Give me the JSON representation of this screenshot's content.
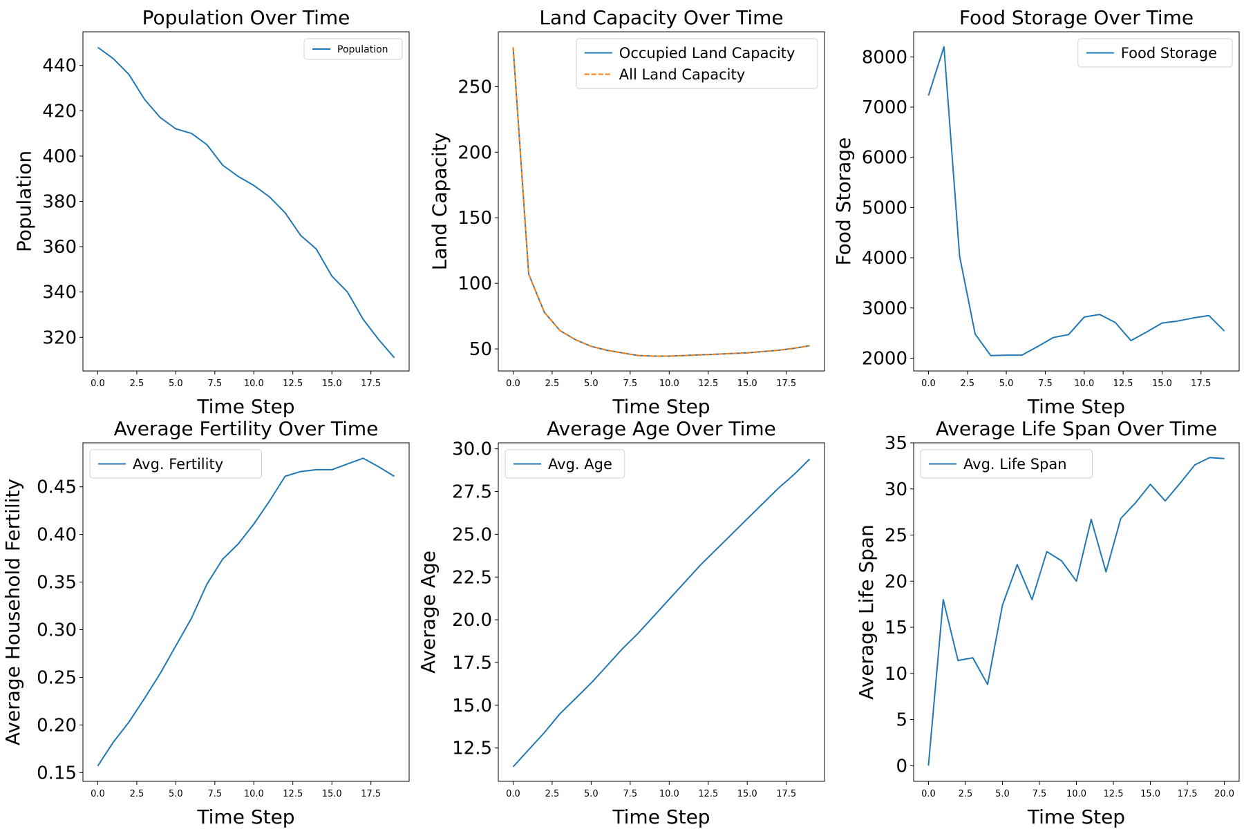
{
  "colors": {
    "blue": "#1f77b4",
    "orange": "#ff7f0e"
  },
  "chart_data": [
    {
      "type": "line",
      "title": "Population Over Time",
      "xlabel": "Time Step",
      "ylabel": "Population",
      "xlim": [
        -0.95,
        19.95
      ],
      "ylim": [
        305.15,
        454.85
      ],
      "xticks": [
        "0.0",
        "2.5",
        "5.0",
        "7.5",
        "10.0",
        "12.5",
        "15.0",
        "17.5"
      ],
      "yticks": [
        "320",
        "340",
        "360",
        "380",
        "400",
        "420",
        "440"
      ],
      "legend": {
        "loc": "upper right",
        "size": "small"
      },
      "x": [
        0,
        1,
        2,
        3,
        4,
        5,
        6,
        7,
        8,
        9,
        10,
        11,
        12,
        13,
        14,
        15,
        16,
        17,
        18,
        19
      ],
      "series": [
        {
          "name": "Population",
          "color": "#1f77b4",
          "style": "solid",
          "values": [
            448,
            443,
            436,
            425,
            417,
            412,
            410,
            405,
            396,
            391,
            387,
            382,
            375,
            365,
            359,
            347,
            340,
            328,
            319,
            311
          ]
        }
      ]
    },
    {
      "type": "line",
      "title": "Land Capacity Over Time",
      "xlabel": "Time Step",
      "ylabel": "Land Capacity",
      "xlim": [
        -0.95,
        19.95
      ],
      "ylim": [
        33.2,
        291.8
      ],
      "xticks": [
        "0.0",
        "2.5",
        "5.0",
        "7.5",
        "10.0",
        "12.5",
        "15.0",
        "17.5"
      ],
      "yticks": [
        "50",
        "100",
        "150",
        "200",
        "250"
      ],
      "legend": {
        "loc": "upper right",
        "size": "large"
      },
      "x": [
        0,
        1,
        2,
        3,
        4,
        5,
        6,
        7,
        8,
        9,
        10,
        11,
        12,
        13,
        14,
        15,
        16,
        17,
        18,
        19
      ],
      "series": [
        {
          "name": "Occupied Land Capacity",
          "color": "#1f77b4",
          "style": "solid",
          "values": [
            280,
            107,
            78,
            64,
            57,
            52,
            49,
            47,
            45,
            44.5,
            44.5,
            45,
            45.5,
            46,
            46.5,
            47,
            48,
            49,
            50.5,
            52.5
          ]
        },
        {
          "name": "All Land Capacity",
          "color": "#ff7f0e",
          "style": "dashed",
          "values": [
            280,
            107,
            78,
            64,
            57,
            52,
            49,
            47,
            45,
            44.5,
            44.5,
            45,
            45.5,
            46,
            46.5,
            47,
            48,
            49,
            50.5,
            52.5
          ]
        }
      ]
    },
    {
      "type": "line",
      "title": "Food Storage Over Time",
      "xlabel": "Time Step",
      "ylabel": "Food Storage",
      "xlim": [
        -0.95,
        19.95
      ],
      "ylim": [
        1745,
        8500
      ],
      "xticks": [
        "0.0",
        "2.5",
        "5.0",
        "7.5",
        "10.0",
        "12.5",
        "15.0",
        "17.5"
      ],
      "yticks": [
        "2000",
        "3000",
        "4000",
        "5000",
        "6000",
        "7000",
        "8000"
      ],
      "legend": {
        "loc": "upper right",
        "size": "large"
      },
      "x": [
        0,
        1,
        2,
        3,
        4,
        5,
        6,
        7,
        8,
        9,
        10,
        11,
        12,
        13,
        14,
        15,
        16,
        17,
        18,
        19
      ],
      "series": [
        {
          "name": "Food Storage",
          "color": "#1f77b4",
          "style": "solid",
          "values": [
            7230,
            8200,
            4030,
            2480,
            2050,
            2060,
            2060,
            2230,
            2410,
            2470,
            2820,
            2870,
            2710,
            2350,
            2520,
            2700,
            2740,
            2800,
            2850,
            2540
          ]
        }
      ]
    },
    {
      "type": "line",
      "title": "Average Fertility Over Time",
      "xlabel": "Time Step",
      "ylabel": "Average Household Fertility",
      "xlim": [
        -0.95,
        19.95
      ],
      "ylim": [
        0.1408,
        0.4962
      ],
      "xticks": [
        "0.0",
        "2.5",
        "5.0",
        "7.5",
        "10.0",
        "12.5",
        "15.0",
        "17.5"
      ],
      "yticks": [
        "0.15",
        "0.20",
        "0.25",
        "0.30",
        "0.35",
        "0.40",
        "0.45"
      ],
      "legend": {
        "loc": "upper left",
        "size": "large"
      },
      "x": [
        0,
        1,
        2,
        3,
        4,
        5,
        6,
        7,
        8,
        9,
        10,
        11,
        12,
        13,
        14,
        15,
        16,
        17,
        18,
        19
      ],
      "series": [
        {
          "name": "Avg. Fertility",
          "color": "#1f77b4",
          "style": "solid",
          "values": [
            0.157,
            0.182,
            0.203,
            0.228,
            0.254,
            0.283,
            0.312,
            0.348,
            0.374,
            0.39,
            0.411,
            0.435,
            0.461,
            0.466,
            0.468,
            0.468,
            0.474,
            0.48,
            0.471,
            0.461
          ]
        }
      ]
    },
    {
      "type": "line",
      "title": "Average Age Over Time",
      "xlabel": "Time Step",
      "ylabel": "Average Age",
      "xlim": [
        -0.95,
        19.95
      ],
      "ylim": [
        10.55,
        30.35
      ],
      "xticks": [
        "0.0",
        "2.5",
        "5.0",
        "7.5",
        "10.0",
        "12.5",
        "15.0",
        "17.5"
      ],
      "yticks": [
        "12.5",
        "15.0",
        "17.5",
        "20.0",
        "22.5",
        "25.0",
        "27.5",
        "30.0"
      ],
      "legend": {
        "loc": "upper left",
        "size": "large"
      },
      "x": [
        0,
        1,
        2,
        3,
        4,
        5,
        6,
        7,
        8,
        9,
        10,
        11,
        12,
        13,
        14,
        15,
        16,
        17,
        18,
        19
      ],
      "series": [
        {
          "name": "Avg. Age",
          "color": "#1f77b4",
          "style": "solid",
          "values": [
            11.4,
            12.4,
            13.4,
            14.5,
            15.4,
            16.3,
            17.3,
            18.3,
            19.2,
            20.2,
            21.2,
            22.2,
            23.2,
            24.1,
            25.0,
            25.9,
            26.8,
            27.7,
            28.5,
            29.4
          ]
        }
      ]
    },
    {
      "type": "line",
      "title": "Average Life Span Over Time",
      "xlabel": "Time Step",
      "ylabel": "Average Life Span",
      "xlim": [
        -1.0,
        21.0
      ],
      "ylim": [
        -1.7,
        35.0
      ],
      "xticks": [
        "0.0",
        "2.5",
        "5.0",
        "7.5",
        "10.0",
        "12.5",
        "15.0",
        "17.5",
        "20.0"
      ],
      "yticks": [
        "0",
        "5",
        "10",
        "15",
        "20",
        "25",
        "30",
        "35"
      ],
      "legend": {
        "loc": "upper left",
        "size": "large"
      },
      "x": [
        0,
        1,
        2,
        3,
        4,
        5,
        6,
        7,
        8,
        9,
        10,
        11,
        12,
        13,
        14,
        15,
        16,
        17,
        18,
        19,
        20
      ],
      "series": [
        {
          "name": "Avg. Life Span",
          "color": "#1f77b4",
          "style": "solid",
          "values": [
            0,
            18.0,
            11.4,
            11.7,
            8.8,
            17.4,
            21.8,
            18.0,
            23.2,
            22.2,
            20.0,
            26.7,
            21.0,
            26.8,
            28.5,
            30.5,
            28.7,
            30.6,
            32.6,
            33.4,
            33.3
          ]
        }
      ]
    }
  ]
}
